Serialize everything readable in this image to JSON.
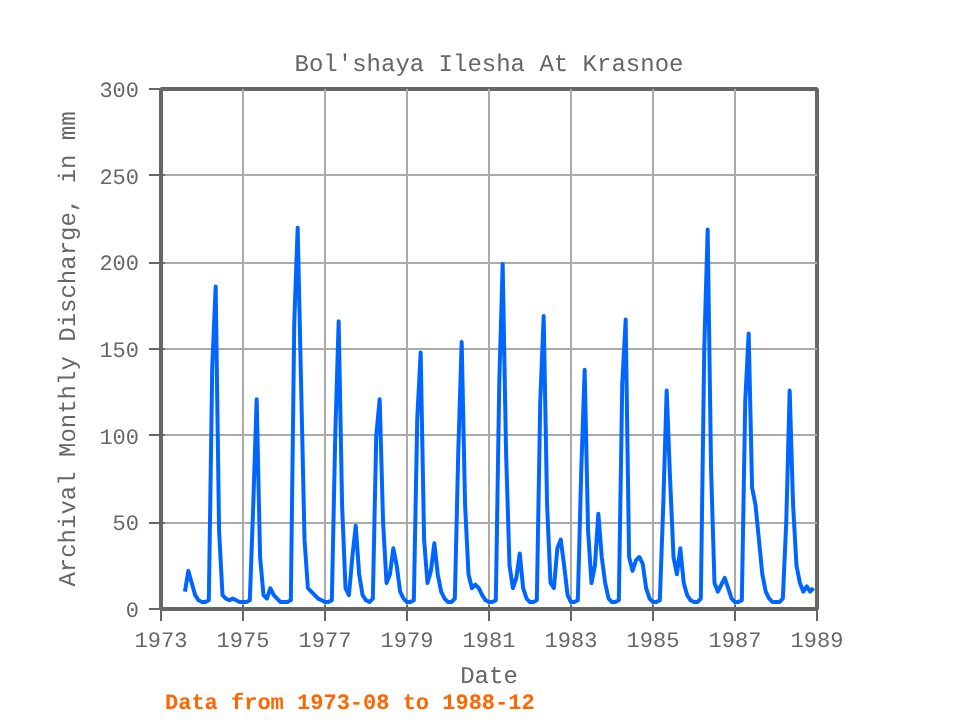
{
  "chart_data": {
    "type": "line",
    "title": "Bol'shaya Ilesha At Krasnoe",
    "xlabel": "Date",
    "ylabel": "Archival Monthly Discharge, in mm",
    "annotations": [
      "Data from 1973-08 to 1988-12"
    ],
    "x": [
      "1973-08",
      "1973-09",
      "1973-10",
      "1973-11",
      "1973-12",
      "1974-01",
      "1974-02",
      "1974-03",
      "1974-04",
      "1974-05",
      "1974-06",
      "1974-07",
      "1974-08",
      "1974-09",
      "1974-10",
      "1974-11",
      "1974-12",
      "1975-01",
      "1975-02",
      "1975-03",
      "1975-04",
      "1975-05",
      "1975-06",
      "1975-07",
      "1975-08",
      "1975-09",
      "1975-10",
      "1975-11",
      "1975-12",
      "1976-01",
      "1976-02",
      "1976-03",
      "1976-04",
      "1976-05",
      "1976-06",
      "1976-07",
      "1976-08",
      "1976-09",
      "1976-10",
      "1976-11",
      "1976-12",
      "1977-01",
      "1977-02",
      "1977-03",
      "1977-04",
      "1977-05",
      "1977-06",
      "1977-07",
      "1977-08",
      "1977-09",
      "1977-10",
      "1977-11",
      "1977-12",
      "1978-01",
      "1978-02",
      "1978-03",
      "1978-04",
      "1978-05",
      "1978-06",
      "1978-07",
      "1978-08",
      "1978-09",
      "1978-10",
      "1978-11",
      "1978-12",
      "1979-01",
      "1979-02",
      "1979-03",
      "1979-04",
      "1979-05",
      "1979-06",
      "1979-07",
      "1979-08",
      "1979-09",
      "1979-10",
      "1979-11",
      "1979-12",
      "1980-01",
      "1980-02",
      "1980-03",
      "1980-04",
      "1980-05",
      "1980-06",
      "1980-07",
      "1980-08",
      "1980-09",
      "1980-10",
      "1980-11",
      "1980-12",
      "1981-01",
      "1981-02",
      "1981-03",
      "1981-04",
      "1981-05",
      "1981-06",
      "1981-07",
      "1981-08",
      "1981-09",
      "1981-10",
      "1981-11",
      "1981-12",
      "1982-01",
      "1982-02",
      "1982-03",
      "1982-04",
      "1982-05",
      "1982-06",
      "1982-07",
      "1982-08",
      "1982-09",
      "1982-10",
      "1982-11",
      "1982-12",
      "1983-01",
      "1983-02",
      "1983-03",
      "1983-04",
      "1983-05",
      "1983-06",
      "1983-07",
      "1983-08",
      "1983-09",
      "1983-10",
      "1983-11",
      "1983-12",
      "1984-01",
      "1984-02",
      "1984-03",
      "1984-04",
      "1984-05",
      "1984-06",
      "1984-07",
      "1984-08",
      "1984-09",
      "1984-10",
      "1984-11",
      "1984-12",
      "1985-01",
      "1985-02",
      "1985-03",
      "1985-04",
      "1985-05",
      "1985-06",
      "1985-07",
      "1985-08",
      "1985-09",
      "1985-10",
      "1985-11",
      "1985-12",
      "1986-01",
      "1986-02",
      "1986-03",
      "1986-04",
      "1986-05",
      "1986-06",
      "1986-07",
      "1986-08",
      "1986-09",
      "1986-10",
      "1986-11",
      "1986-12",
      "1987-01",
      "1987-02",
      "1987-03",
      "1987-04",
      "1987-05",
      "1987-06",
      "1987-07",
      "1987-08",
      "1987-09",
      "1987-10",
      "1987-11",
      "1987-12",
      "1988-01",
      "1988-02",
      "1988-03",
      "1988-04",
      "1988-05",
      "1988-06",
      "1988-07",
      "1988-08",
      "1988-09",
      "1988-10",
      "1988-11",
      "1988-12"
    ],
    "series": [
      {
        "color": "#0066ff",
        "values": [
          10,
          22,
          15,
          8,
          5,
          4,
          4,
          5,
          140,
          186,
          45,
          8,
          6,
          5,
          6,
          5,
          4,
          4,
          4,
          5,
          60,
          121,
          30,
          8,
          6,
          12,
          8,
          6,
          4,
          4,
          4,
          5,
          165,
          220,
          130,
          40,
          12,
          10,
          8,
          6,
          5,
          4,
          4,
          5,
          100,
          166,
          60,
          12,
          8,
          30,
          48,
          20,
          8,
          5,
          4,
          6,
          100,
          121,
          50,
          15,
          20,
          35,
          25,
          10,
          6,
          4,
          4,
          5,
          110,
          148,
          40,
          15,
          22,
          38,
          20,
          10,
          6,
          4,
          4,
          6,
          90,
          154,
          60,
          20,
          12,
          14,
          12,
          8,
          5,
          4,
          4,
          5,
          130,
          199,
          90,
          25,
          12,
          18,
          32,
          12,
          6,
          4,
          4,
          5,
          120,
          169,
          60,
          15,
          12,
          35,
          40,
          25,
          8,
          4,
          4,
          5,
          80,
          138,
          45,
          15,
          25,
          55,
          30,
          15,
          6,
          4,
          4,
          5,
          130,
          167,
          30,
          22,
          28,
          30,
          26,
          12,
          6,
          4,
          4,
          5,
          60,
          126,
          75,
          30,
          20,
          35,
          15,
          8,
          5,
          4,
          4,
          6,
          150,
          219,
          80,
          15,
          10,
          14,
          18,
          12,
          6,
          4,
          4,
          5,
          120,
          159,
          70,
          60,
          40,
          20,
          10,
          6,
          4,
          4,
          4,
          6,
          50,
          126,
          60,
          25,
          15,
          10,
          13,
          10,
          12
        ]
      }
    ],
    "xlim": [
      "1973",
      "1989"
    ],
    "xticks": [
      "1973",
      "1975",
      "1977",
      "1979",
      "1981",
      "1983",
      "1985",
      "1987",
      "1989"
    ],
    "ylim": [
      0,
      300
    ],
    "yticks": [
      0,
      50,
      100,
      150,
      200,
      250,
      300
    ],
    "grid": true,
    "line_style": "solid",
    "marker": "none"
  }
}
